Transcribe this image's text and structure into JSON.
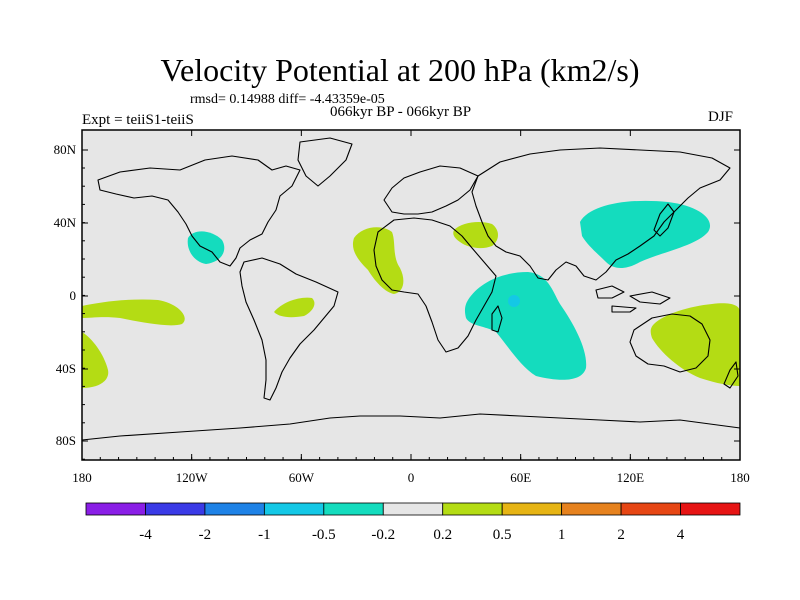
{
  "title": "Velocity Potential at 200 hPa (km2/s)",
  "subtitle": "rmsd= 0.14988 diff= -4.43359e-05",
  "left_string": "Expt = teiiS1-teiiS",
  "center_string": "066kyr BP - 066kyr BP",
  "right_string": "DJF",
  "lat_ticks": [
    "80N",
    "40N",
    "0",
    "40S",
    "80S"
  ],
  "lon_ticks": [
    "180",
    "120W",
    "60W",
    "0",
    "60E",
    "120E",
    "180"
  ],
  "colorbar": {
    "labels": [
      "-4",
      "-2",
      "-1",
      "-0.5",
      "-0.2",
      "0.2",
      "0.5",
      "1",
      "2",
      "4"
    ],
    "colors": [
      "#8a1ee6",
      "#3a3ae6",
      "#1e82e6",
      "#14c8e6",
      "#14dcbe",
      "#e6e6e6",
      "#b4dc14",
      "#e6b414",
      "#e6821e",
      "#e64614",
      "#e61414"
    ]
  },
  "colors": {
    "background_field": "#e6e6e6",
    "negative_fill": "#14dcbe",
    "positive_fill": "#b4dc14",
    "min_fill": "#14c8e6"
  }
}
